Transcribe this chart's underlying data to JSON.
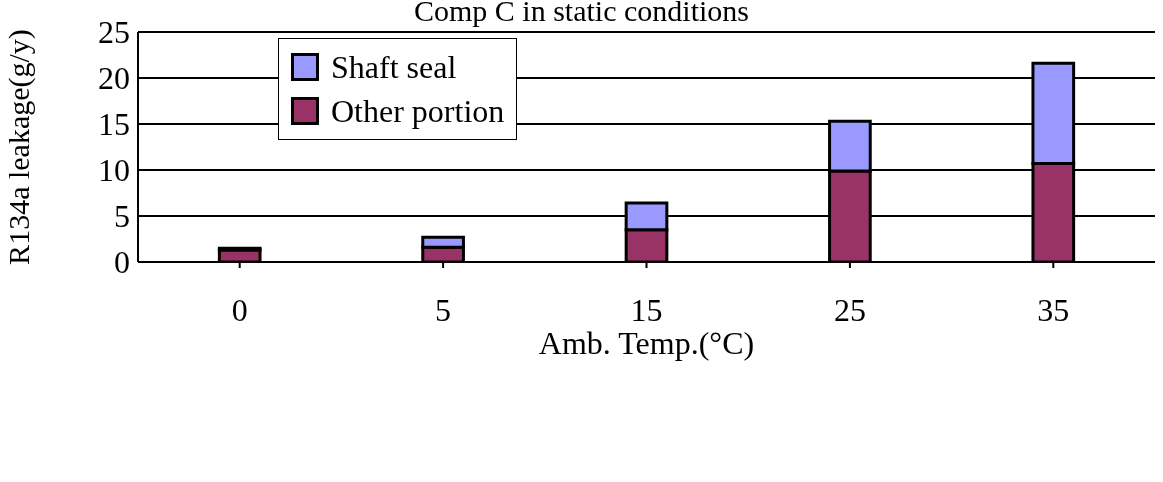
{
  "chart_data": {
    "type": "bar",
    "title": "Comp C in static conditions",
    "xlabel": "Amb. Temp.(°C)",
    "ylabel": "R134a leakage(g/y)",
    "categories": [
      "0",
      "5",
      "15",
      "25",
      "35"
    ],
    "stacked": true,
    "series": [
      {
        "name": "Other portion",
        "color": "#993366",
        "values": [
          1.3,
          1.6,
          3.5,
          9.9,
          10.7
        ]
      },
      {
        "name": "Shaft seal",
        "color": "#9999ff",
        "values": [
          0.2,
          1.1,
          2.9,
          5.4,
          10.9
        ]
      }
    ],
    "ylim": [
      0,
      25
    ],
    "yticks": [
      0,
      5,
      10,
      15,
      20,
      25
    ],
    "grid": "y",
    "legend": "top left"
  }
}
